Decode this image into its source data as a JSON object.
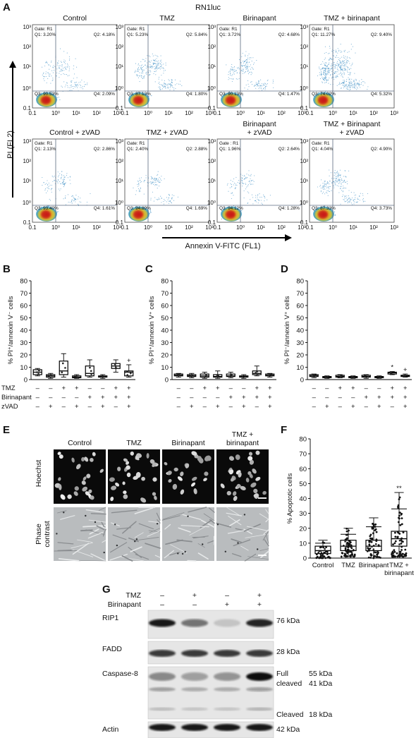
{
  "panel_a": {
    "letter": "A",
    "cell_line": "RN1luc",
    "y_axis_label": "PI (FL2)",
    "x_axis_label": "Annexin V-FITC (FL1)",
    "y_ticks": [
      "10³",
      "10²",
      "10¹",
      "10⁰",
      "0.1"
    ],
    "x_ticks": [
      "0.1",
      "10⁰",
      "10¹",
      "10²",
      "10³"
    ],
    "plots": [
      {
        "title": [
          "Control"
        ],
        "gate": "Gate: R1",
        "q1": "Q1: 3.20%",
        "q2": "Q2: 4.18%",
        "q3": "Q3: 90.53%",
        "q4": "Q4: 2.09%"
      },
      {
        "title": [
          "TMZ"
        ],
        "gate": "Gate: R1",
        "q1": "Q1: 5.23%",
        "q2": "Q2: 5.84%",
        "q3": "Q3: 87.13%",
        "q4": "Q4: 1.80%"
      },
      {
        "title": [
          "Birinapant"
        ],
        "gate": "Gate: R1",
        "q1": "Q1: 3.72%",
        "q2": "Q2: 4.68%",
        "q3": "Q3: 90.13%",
        "q4": "Q4: 1.47%"
      },
      {
        "title": [
          "TMZ + birinapant"
        ],
        "gate": "Gate: R1",
        "q1": "Q1: 11.27%",
        "q2": "Q2: 9.40%",
        "q3": "Q3: 74.02%",
        "q4": "Q4: 5.32%"
      },
      {
        "title": [
          "Control + zVAD"
        ],
        "gate": "Gate: R1",
        "q1": "Q1: 2.13%",
        "q2": "Q2: 2.86%",
        "q3": "Q3: 93.40%",
        "q4": "Q4: 1.61%"
      },
      {
        "title": [
          "TMZ + zVAD"
        ],
        "gate": "Gate: R1",
        "q1": "Q1: 2.40%",
        "q2": "Q2: 2.88%",
        "q3": "Q3: 94.89%",
        "q4": "Q4: 1.69%"
      },
      {
        "title": [
          "Birinapant",
          "+ zVAD"
        ],
        "gate": "Gate : R1",
        "q1": "Q1: 1.96%",
        "q2": "Q2: 2.64%",
        "q3": "Q3: 94.12%",
        "q4": "Q4: 1.28%"
      },
      {
        "title": [
          "TMZ + Birinapant",
          "+ zVAD"
        ],
        "gate": "Gate: R1",
        "q1": "Q1: 4.04%",
        "q2": "Q2: 4.90%",
        "q3": "Q3: 87.33%",
        "q4": "Q4: 3.73%"
      }
    ]
  },
  "chart_data": [
    {
      "type": "box",
      "panel": "B",
      "ylabel": "% PI⁺/annexin V⁻ cells",
      "ylim": [
        0,
        80
      ],
      "yticks": [
        0,
        10,
        20,
        30,
        40,
        50,
        60,
        70,
        80
      ],
      "row_labels": [
        "TMZ",
        "Birinapant",
        "zVAD"
      ],
      "conditions": [
        [
          "–",
          "–",
          "–"
        ],
        [
          "–",
          "–",
          "+"
        ],
        [
          "+",
          "–",
          "–"
        ],
        [
          "+",
          "–",
          "+"
        ],
        [
          "–",
          "+",
          "–"
        ],
        [
          "–",
          "+",
          "+"
        ],
        [
          "+",
          "+",
          "–"
        ],
        [
          "+",
          "+",
          "+"
        ]
      ],
      "boxes": [
        {
          "min": 3,
          "q1": 4,
          "median": 6,
          "q3": 8,
          "max": 9
        },
        {
          "min": 1,
          "q1": 2,
          "median": 3,
          "q3": 4,
          "max": 5
        },
        {
          "min": 2,
          "q1": 4,
          "median": 7,
          "q3": 15,
          "max": 21
        },
        {
          "min": 1,
          "q1": 1.5,
          "median": 2,
          "q3": 3,
          "max": 4
        },
        {
          "min": 2,
          "q1": 3,
          "median": 5,
          "q3": 11,
          "max": 16
        },
        {
          "min": 1,
          "q1": 2,
          "median": 2.5,
          "q3": 3,
          "max": 4
        },
        {
          "min": 6,
          "q1": 9,
          "median": 11,
          "q3": 13,
          "max": 16
        },
        {
          "min": 2,
          "q1": 3,
          "median": 6,
          "q3": 7,
          "max": 12
        }
      ],
      "annotations": [
        {
          "index": 7,
          "text": "+"
        }
      ]
    },
    {
      "type": "box",
      "panel": "C",
      "ylabel": "% PI⁺/annexin V⁺ cells",
      "ylim": [
        0,
        80
      ],
      "yticks": [
        0,
        10,
        20,
        30,
        40,
        50,
        60,
        70,
        80
      ],
      "conditions": [
        [
          "–",
          "–",
          "–"
        ],
        [
          "–",
          "–",
          "+"
        ],
        [
          "+",
          "–",
          "–"
        ],
        [
          "+",
          "–",
          "+"
        ],
        [
          "–",
          "+",
          "–"
        ],
        [
          "–",
          "+",
          "+"
        ],
        [
          "+",
          "+",
          "–"
        ],
        [
          "+",
          "+",
          "+"
        ]
      ],
      "boxes": [
        {
          "min": 2,
          "q1": 3,
          "median": 3.5,
          "q3": 4.5,
          "max": 5
        },
        {
          "min": 1.5,
          "q1": 2.5,
          "median": 3,
          "q3": 4,
          "max": 5
        },
        {
          "min": 1,
          "q1": 2,
          "median": 3,
          "q3": 4.5,
          "max": 6
        },
        {
          "min": 1,
          "q1": 2,
          "median": 2.5,
          "q3": 4,
          "max": 7
        },
        {
          "min": 1.5,
          "q1": 2.5,
          "median": 3,
          "q3": 4.5,
          "max": 6
        },
        {
          "min": 1,
          "q1": 2,
          "median": 2.5,
          "q3": 3,
          "max": 4
        },
        {
          "min": 3,
          "q1": 4,
          "median": 5,
          "q3": 7,
          "max": 11
        },
        {
          "min": 2,
          "q1": 3,
          "median": 3.5,
          "q3": 4.5,
          "max": 5
        }
      ],
      "annotations": []
    },
    {
      "type": "box",
      "panel": "D",
      "ylabel": "% PI⁻/annexin V⁺ cells",
      "ylim": [
        0,
        80
      ],
      "yticks": [
        0,
        10,
        20,
        30,
        40,
        50,
        60,
        70,
        80
      ],
      "conditions": [
        [
          "–",
          "–",
          "–"
        ],
        [
          "–",
          "–",
          "+"
        ],
        [
          "+",
          "–",
          "–"
        ],
        [
          "+",
          "–",
          "+"
        ],
        [
          "–",
          "+",
          "–"
        ],
        [
          "–",
          "+",
          "+"
        ],
        [
          "+",
          "+",
          "–"
        ],
        [
          "+",
          "+",
          "+"
        ]
      ],
      "boxes": [
        {
          "min": 1.5,
          "q1": 2.5,
          "median": 3,
          "q3": 4,
          "max": 4.5
        },
        {
          "min": 1,
          "q1": 1.5,
          "median": 2,
          "q3": 2.5,
          "max": 3
        },
        {
          "min": 1.5,
          "q1": 2,
          "median": 2.5,
          "q3": 3.5,
          "max": 4
        },
        {
          "min": 1,
          "q1": 1.5,
          "median": 2,
          "q3": 2.5,
          "max": 3
        },
        {
          "min": 1,
          "q1": 2,
          "median": 2.5,
          "q3": 3.5,
          "max": 4
        },
        {
          "min": 1,
          "q1": 1.5,
          "median": 2,
          "q3": 2.5,
          "max": 3
        },
        {
          "min": 4,
          "q1": 4.5,
          "median": 5.5,
          "q3": 6,
          "max": 6.5
        },
        {
          "min": 2,
          "q1": 2.5,
          "median": 3,
          "q3": 3.5,
          "max": 4.5
        }
      ],
      "annotations": [
        {
          "index": 6,
          "text": "*"
        },
        {
          "index": 7,
          "text": "+"
        }
      ]
    },
    {
      "type": "box",
      "panel": "F",
      "ylabel": "% Apoptotic cells",
      "ylim": [
        0,
        80
      ],
      "yticks": [
        0,
        10,
        20,
        30,
        40,
        50,
        60,
        70,
        80
      ],
      "categories": [
        "Control",
        "TMZ",
        "Birinapant",
        "TMZ +\nbirinapant"
      ],
      "boxes": [
        {
          "min": 0,
          "q1": 3,
          "median": 5,
          "q3": 8,
          "max": 12,
          "sd_upper": 10
        },
        {
          "min": 1,
          "q1": 5,
          "median": 8,
          "q3": 12,
          "max": 20,
          "sd_upper": 16
        },
        {
          "min": 0,
          "q1": 5,
          "median": 8,
          "q3": 12,
          "max": 27,
          "sd_upper": 21
        },
        {
          "min": 1,
          "q1": 8,
          "median": 13,
          "q3": 18,
          "max": 44,
          "sd_upper": 33
        }
      ],
      "annotations": [
        {
          "index": 3,
          "text": "**"
        }
      ]
    }
  ],
  "panel_e": {
    "letter": "E",
    "columns": [
      "Control",
      "TMZ",
      "Birinapant",
      "TMZ +\nbirinapant"
    ],
    "rows": [
      "Hoechst",
      "Phase\ncontrast"
    ]
  },
  "panel_g": {
    "letter": "G",
    "header_rows": [
      {
        "label": "TMZ",
        "signs": [
          "–",
          "+",
          "–",
          "+"
        ]
      },
      {
        "label": "Birinapant",
        "signs": [
          "–",
          "–",
          "+",
          "+"
        ]
      }
    ],
    "blots": [
      {
        "label": "RIP1",
        "sizes": [
          "76 kDa"
        ]
      },
      {
        "label": "FADD",
        "sizes": [
          "28 kDa"
        ]
      },
      {
        "label": "Caspase-8",
        "sizes": [
          "Full",
          "55 kDa",
          "cleaved",
          "41 kDa",
          "Cleaved",
          "18 kDa"
        ]
      },
      {
        "label": "Actin",
        "sizes": [
          "42 kDa"
        ]
      }
    ]
  },
  "panel_letters": [
    "A",
    "B",
    "C",
    "D",
    "E",
    "F",
    "G"
  ]
}
